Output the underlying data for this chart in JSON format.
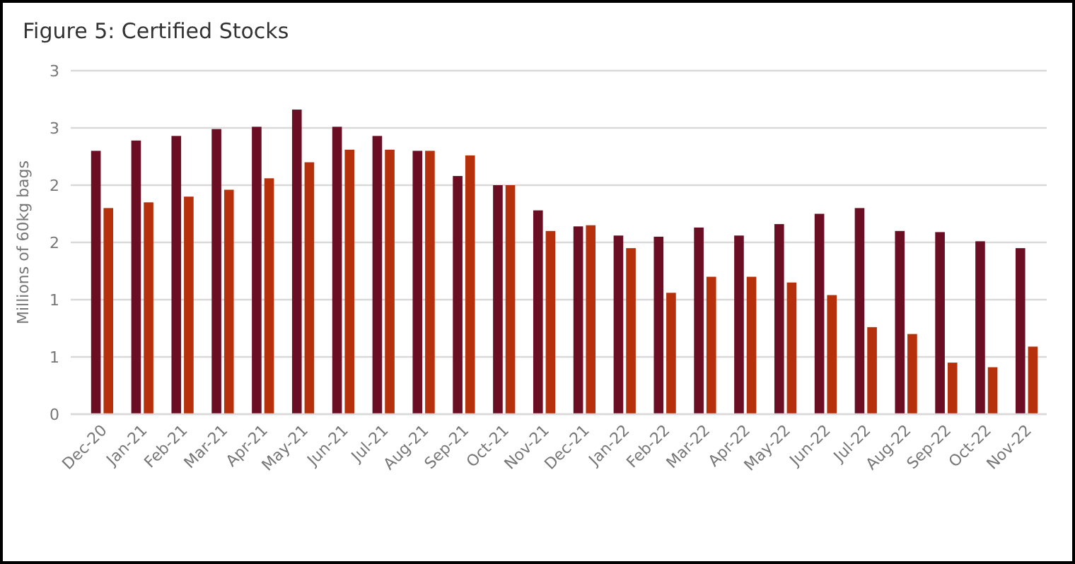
{
  "chart_data": {
    "type": "bar",
    "title": "Figure 5: Certified Stocks",
    "ylabel": "Millions of 60kg bags",
    "categories": [
      "Dec-20",
      "Jan-21",
      "Feb-21",
      "Mar-21",
      "Apr-21",
      "May-21",
      "Jun-21",
      "Jul-21",
      "Aug-21",
      "Sep-21",
      "Oct-21",
      "Nov-21",
      "Dec-21",
      "Jan-22",
      "Feb-22",
      "Mar-22",
      "Apr-22",
      "May-22",
      "Jun-22",
      "Jul-22",
      "Aug-22",
      "Sep-22",
      "Oct-22",
      "Nov-22"
    ],
    "series": [
      {
        "color": "#6b0e24",
        "values": [
          2.3,
          2.39,
          2.43,
          2.49,
          2.51,
          2.66,
          2.51,
          2.43,
          2.3,
          2.08,
          2.0,
          1.78,
          1.64,
          1.56,
          1.55,
          1.63,
          1.56,
          1.66,
          1.75,
          1.8,
          1.6,
          1.59,
          1.51,
          1.45
        ]
      },
      {
        "color": "#b5300b",
        "values": [
          1.8,
          1.85,
          1.9,
          1.96,
          2.06,
          2.2,
          2.31,
          2.31,
          2.3,
          2.26,
          2.0,
          1.6,
          1.65,
          1.45,
          1.06,
          1.2,
          1.2,
          1.15,
          1.04,
          0.76,
          0.7,
          0.45,
          0.41,
          0.59
        ]
      }
    ],
    "ylim": [
      0,
      3
    ],
    "yticks": [
      0,
      {
        "value": 0.5,
        "label": "1"
      },
      1,
      {
        "value": 1.5,
        "label": "2"
      },
      2,
      {
        "value": 2.5,
        "label": "3"
      },
      3
    ],
    "grid": "y"
  }
}
